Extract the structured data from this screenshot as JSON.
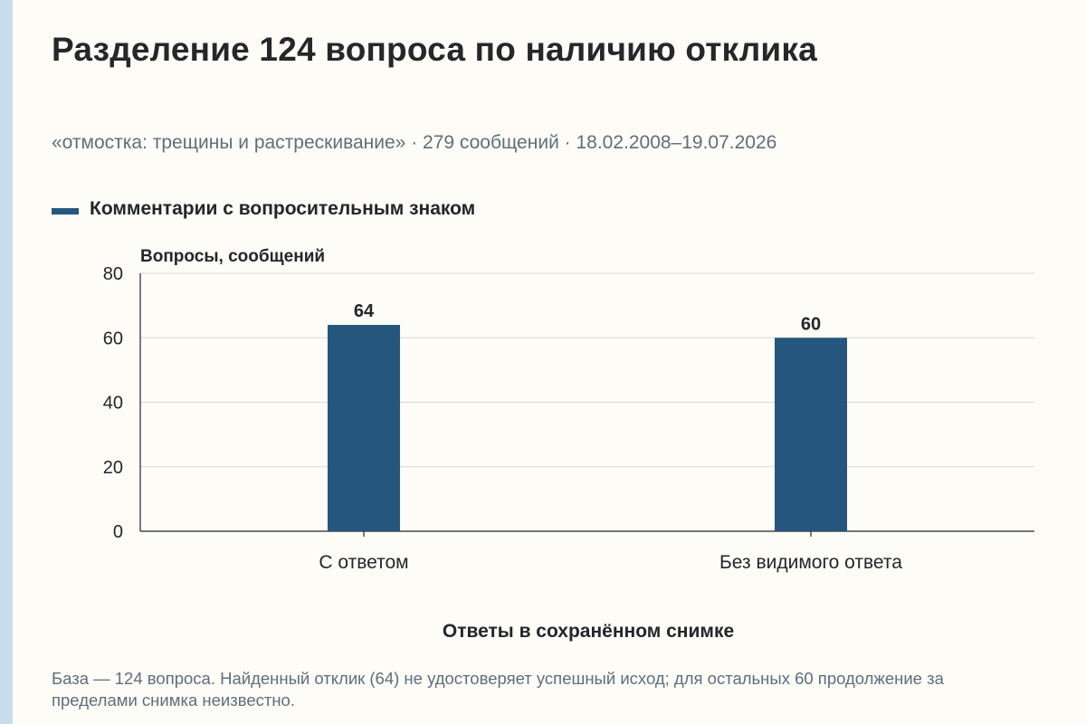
{
  "title": "Разделение 124 вопроса по наличию отклика",
  "subtitle": "«отмостка: трещины и растрескивание» · 279 сообщений · 18.02.2008–19.07.2026",
  "note": "База — 124 вопроса. Найденный отклик (64) не удостоверяет успешный исход; для остальных 60 продолжение за пределами снимка неизвестно.",
  "colors": {
    "bar": "#25577e",
    "accent_bar": "#c7dced",
    "grid": "#d9d9d9",
    "axis": "#23262b"
  },
  "chart_data": {
    "type": "bar",
    "categories": [
      "С ответом",
      "Без видимого ответа"
    ],
    "series": [
      {
        "name": "Комментарии с вопросительным знаком",
        "values": [
          64,
          60
        ]
      }
    ],
    "data_labels": [
      "64",
      "60"
    ],
    "xlabel": "Ответы в сохранённом снимке",
    "ylabel": "Вопросы, сообщений",
    "ylim": [
      0,
      80
    ],
    "yticks": [
      0,
      20,
      40,
      60,
      80
    ],
    "grid": true,
    "legend_position": "top-left"
  }
}
